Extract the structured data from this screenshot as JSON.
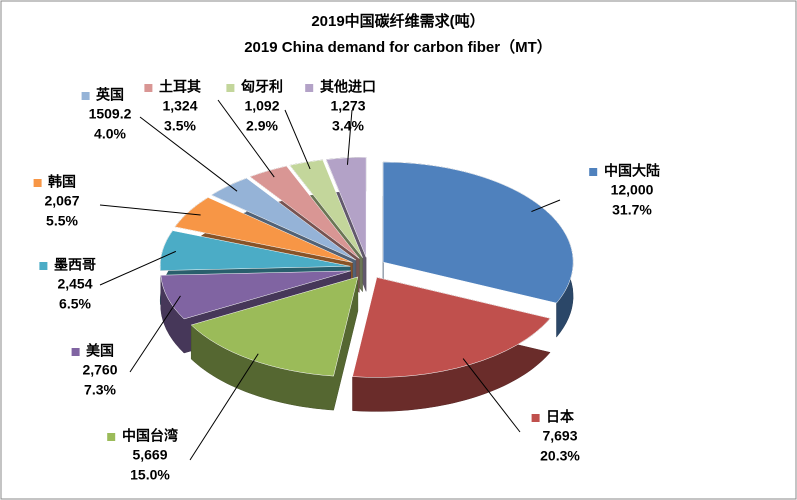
{
  "chart_data": {
    "type": "pie",
    "title": "2019中国碳纤维需求(吨）",
    "subtitle": "2019 China demand for carbon fiber（MT）",
    "categories": [
      "中国大陆",
      "日本",
      "中国台湾",
      "美国",
      "墨西哥",
      "韩国",
      "英国",
      "土耳其",
      "匈牙利",
      "其他进口"
    ],
    "values": [
      12000,
      7693,
      5669,
      2760,
      2454,
      2067,
      1509.2,
      1324,
      1092,
      1273
    ],
    "value_labels": [
      "12,000",
      "7,693",
      "5,669",
      "2,760",
      "2,454",
      "2,067",
      "1509.2",
      "1,324",
      "1,092",
      "1,273"
    ],
    "percents": [
      31.7,
      20.3,
      15.0,
      7.3,
      6.5,
      5.5,
      4.0,
      3.5,
      2.9,
      3.4
    ],
    "percent_labels": [
      "31.7%",
      "20.3%",
      "15.0%",
      "7.3%",
      "6.5%",
      "5.5%",
      "4.0%",
      "3.5%",
      "2.9%",
      "3.4%"
    ],
    "colors": [
      "#4f81bd",
      "#c0504d",
      "#9bbb59",
      "#8064a2",
      "#4bacc6",
      "#f79646",
      "#95b3d7",
      "#d99694",
      "#c3d69b",
      "#b3a2c7"
    ]
  }
}
